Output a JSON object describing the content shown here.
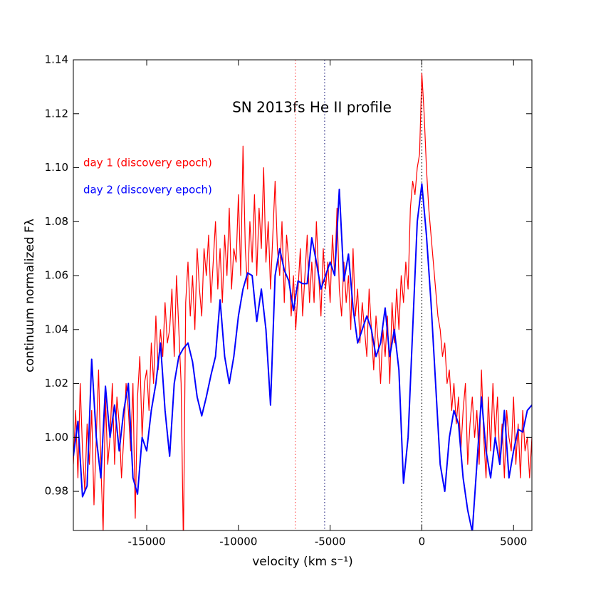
{
  "chart_data": {
    "type": "line",
    "title": "SN 2013fs He II profile",
    "x_label": "velocity (km s⁻¹)",
    "y_label": "continuum normalized Fλ",
    "xlim": [
      -19000,
      6000
    ],
    "ylim": [
      0.9655,
      1.14
    ],
    "xticks": [
      -15000,
      -10000,
      -5000,
      0,
      5000
    ],
    "yticks": [
      0.98,
      {
        "value": 1,
        "label": "1.00"
      },
      1.02,
      1.04,
      1.06,
      1.08,
      {
        "value": 1.1,
        "label": "1.10"
      },
      1.12,
      1.14
    ],
    "vlines": [
      {
        "x": -6900,
        "color": "#ff5555"
      },
      {
        "x": -5300,
        "color": "#333388"
      },
      {
        "x": 0,
        "color": "#000000"
      }
    ],
    "series": [
      {
        "name": "day 1 (discovery epoch)",
        "color": "#ff0000",
        "x": [
          -19000,
          -18875,
          -18750,
          -18625,
          -18500,
          -18375,
          -18250,
          -18125,
          -18000,
          -17875,
          -17750,
          -17625,
          -17500,
          -17375,
          -17250,
          -17125,
          -17000,
          -16875,
          -16750,
          -16625,
          -16500,
          -16375,
          -16250,
          -16125,
          -16000,
          -15875,
          -15750,
          -15625,
          -15500,
          -15375,
          -15250,
          -15125,
          -15000,
          -14875,
          -14750,
          -14625,
          -14500,
          -14375,
          -14250,
          -14125,
          -14000,
          -13875,
          -13750,
          -13625,
          -13500,
          -13375,
          -13250,
          -13125,
          -13000,
          -12875,
          -12750,
          -12625,
          -12500,
          -12375,
          -12250,
          -12125,
          -12000,
          -11875,
          -11750,
          -11625,
          -11500,
          -11375,
          -11250,
          -11125,
          -11000,
          -10875,
          -10750,
          -10625,
          -10500,
          -10375,
          -10250,
          -10125,
          -10000,
          -9875,
          -9750,
          -9625,
          -9500,
          -9375,
          -9250,
          -9125,
          -9000,
          -8875,
          -8750,
          -8625,
          -8500,
          -8375,
          -8250,
          -8125,
          -8000,
          -7875,
          -7750,
          -7625,
          -7500,
          -7375,
          -7250,
          -7125,
          -7000,
          -6875,
          -6750,
          -6625,
          -6500,
          -6375,
          -6250,
          -6125,
          -6000,
          -5875,
          -5750,
          -5625,
          -5500,
          -5375,
          -5250,
          -5125,
          -5000,
          -4875,
          -4750,
          -4625,
          -4500,
          -4375,
          -4250,
          -4125,
          -4000,
          -3875,
          -3750,
          -3625,
          -3500,
          -3375,
          -3250,
          -3125,
          -3000,
          -2875,
          -2750,
          -2625,
          -2500,
          -2375,
          -2250,
          -2125,
          -2000,
          -1875,
          -1750,
          -1625,
          -1500,
          -1375,
          -1250,
          -1125,
          -1000,
          -875,
          -750,
          -625,
          -500,
          -375,
          -250,
          -125,
          0,
          125,
          250,
          375,
          500,
          625,
          750,
          875,
          1000,
          1125,
          1250,
          1375,
          1500,
          1625,
          1750,
          1875,
          2000,
          2125,
          2250,
          2375,
          2500,
          2625,
          2750,
          2875,
          3000,
          3125,
          3250,
          3375,
          3500,
          3625,
          3750,
          3875,
          4000,
          4125,
          4250,
          4375,
          4500,
          4625,
          4750,
          4875,
          5000,
          5125,
          5250,
          5375,
          5500,
          5625,
          5750,
          5875,
          6000
        ],
        "values": [
          0.99,
          1.01,
          0.985,
          1.02,
          0.995,
          0.98,
          1.005,
          0.99,
          1.01,
          0.975,
          1.0,
          1.025,
          0.99,
          0.965,
          1.015,
          0.99,
          1.0,
          1.02,
          0.99,
          1.015,
          1.005,
          0.985,
          1.0,
          1.02,
          1.01,
          0.995,
          1.02,
          0.97,
          1.015,
          1.03,
          1.0,
          1.02,
          1.025,
          1.01,
          1.035,
          1.02,
          1.045,
          1.025,
          1.04,
          1.03,
          1.05,
          1.035,
          1.04,
          1.055,
          1.03,
          1.06,
          1.04,
          1.02,
          0.96,
          1.05,
          1.065,
          1.045,
          1.06,
          1.04,
          1.07,
          1.055,
          1.045,
          1.07,
          1.06,
          1.075,
          1.05,
          1.065,
          1.08,
          1.055,
          1.07,
          1.05,
          1.075,
          1.06,
          1.085,
          1.055,
          1.07,
          1.065,
          1.09,
          1.06,
          1.108,
          1.07,
          1.055,
          1.08,
          1.065,
          1.09,
          1.06,
          1.085,
          1.07,
          1.1,
          1.065,
          1.08,
          1.055,
          1.075,
          1.095,
          1.07,
          1.06,
          1.08,
          1.05,
          1.075,
          1.065,
          1.045,
          1.06,
          1.04,
          1.055,
          1.07,
          1.045,
          1.06,
          1.075,
          1.05,
          1.065,
          1.05,
          1.08,
          1.06,
          1.045,
          1.07,
          1.055,
          1.065,
          1.05,
          1.075,
          1.06,
          1.085,
          1.055,
          1.045,
          1.065,
          1.05,
          1.06,
          1.04,
          1.07,
          1.045,
          1.055,
          1.035,
          1.05,
          1.04,
          1.03,
          1.055,
          1.04,
          1.025,
          1.045,
          1.035,
          1.02,
          1.04,
          1.03,
          1.045,
          1.02,
          1.05,
          1.035,
          1.055,
          1.04,
          1.06,
          1.05,
          1.065,
          1.055,
          1.085,
          1.095,
          1.09,
          1.1,
          1.105,
          1.135,
          1.12,
          1.1,
          1.085,
          1.075,
          1.065,
          1.055,
          1.045,
          1.04,
          1.03,
          1.035,
          1.02,
          1.025,
          1.01,
          1.02,
          1.005,
          1.015,
          0.995,
          1.01,
          1.02,
          0.99,
          1.005,
          1.015,
          1.0,
          1.01,
          0.99,
          1.025,
          1.0,
          0.985,
          1.015,
          0.995,
          1.02,
          1.0,
          1.015,
          0.99,
          1.005,
          0.985,
          1.01,
          1.0,
          0.995,
          1.015,
          0.99,
          1.005,
          0.985,
          1.01,
          0.995,
          1.0,
          0.985,
          1.0
        ]
      },
      {
        "name": "day 2 (discovery epoch)",
        "color": "#0000ff",
        "x": [
          -19000,
          -18750,
          -18500,
          -18250,
          -18000,
          -17750,
          -17500,
          -17250,
          -17000,
          -16750,
          -16500,
          -16250,
          -16000,
          -15750,
          -15500,
          -15250,
          -15000,
          -14750,
          -14500,
          -14250,
          -14000,
          -13750,
          -13500,
          -13250,
          -13000,
          -12750,
          -12500,
          -12250,
          -12000,
          -11750,
          -11500,
          -11250,
          -11000,
          -10750,
          -10500,
          -10250,
          -10000,
          -9750,
          -9500,
          -9250,
          -9000,
          -8750,
          -8500,
          -8250,
          -8000,
          -7750,
          -7500,
          -7250,
          -7000,
          -6750,
          -6500,
          -6250,
          -6000,
          -5750,
          -5500,
          -5250,
          -5000,
          -4750,
          -4500,
          -4250,
          -4000,
          -3750,
          -3500,
          -3250,
          -3000,
          -2750,
          -2500,
          -2250,
          -2000,
          -1750,
          -1500,
          -1250,
          -1000,
          -750,
          -500,
          -250,
          0,
          250,
          500,
          750,
          1000,
          1250,
          1500,
          1750,
          2000,
          2250,
          2500,
          2750,
          3000,
          3250,
          3500,
          3750,
          4000,
          4250,
          4500,
          4750,
          5000,
          5250,
          5500,
          5750,
          6000
        ],
        "values": [
          0.993,
          1.006,
          0.978,
          0.982,
          1.029,
          1.0,
          0.985,
          1.019,
          1.0,
          1.012,
          0.995,
          1.01,
          1.02,
          0.985,
          0.979,
          1.0,
          0.995,
          1.01,
          1.02,
          1.035,
          1.01,
          0.993,
          1.02,
          1.03,
          1.033,
          1.035,
          1.028,
          1.015,
          1.008,
          1.015,
          1.023,
          1.03,
          1.051,
          1.03,
          1.02,
          1.03,
          1.045,
          1.055,
          1.061,
          1.06,
          1.043,
          1.055,
          1.04,
          1.012,
          1.06,
          1.07,
          1.062,
          1.058,
          1.047,
          1.058,
          1.057,
          1.057,
          1.074,
          1.065,
          1.055,
          1.06,
          1.065,
          1.06,
          1.092,
          1.058,
          1.068,
          1.048,
          1.035,
          1.04,
          1.045,
          1.04,
          1.03,
          1.035,
          1.048,
          1.03,
          1.04,
          1.025,
          0.983,
          1.0,
          1.04,
          1.08,
          1.094,
          1.075,
          1.05,
          1.02,
          0.99,
          0.98,
          1.0,
          1.01,
          1.005,
          0.985,
          0.973,
          0.965,
          0.99,
          1.015,
          0.995,
          0.985,
          1.0,
          0.99,
          1.01,
          0.985,
          0.995,
          1.003,
          1.002,
          1.01,
          1.012
        ]
      }
    ]
  }
}
